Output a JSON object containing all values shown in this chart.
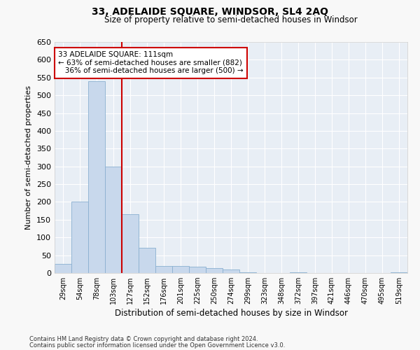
{
  "title": "33, ADELAIDE SQUARE, WINDSOR, SL4 2AQ",
  "subtitle": "Size of property relative to semi-detached houses in Windsor",
  "xlabel": "Distribution of semi-detached houses by size in Windsor",
  "ylabel": "Number of semi-detached properties",
  "bin_labels": [
    "29sqm",
    "54sqm",
    "78sqm",
    "103sqm",
    "127sqm",
    "152sqm",
    "176sqm",
    "201sqm",
    "225sqm",
    "250sqm",
    "274sqm",
    "299sqm",
    "323sqm",
    "348sqm",
    "372sqm",
    "397sqm",
    "421sqm",
    "446sqm",
    "470sqm",
    "495sqm",
    "519sqm"
  ],
  "bar_heights": [
    25,
    200,
    540,
    300,
    165,
    70,
    20,
    20,
    17,
    13,
    9,
    2,
    0,
    0,
    2,
    0,
    0,
    0,
    0,
    0,
    2
  ],
  "bar_color": "#c8d8ec",
  "bar_edge_color": "#8ab0d0",
  "background_color": "#e8eef5",
  "grid_color": "#ffffff",
  "ylim": [
    0,
    650
  ],
  "yticks": [
    0,
    50,
    100,
    150,
    200,
    250,
    300,
    350,
    400,
    450,
    500,
    550,
    600,
    650
  ],
  "red_line_bin_index": 3,
  "red_line_color": "#cc0000",
  "annotation_text": "33 ADELAIDE SQUARE: 111sqm\n← 63% of semi-detached houses are smaller (882)\n   36% of semi-detached houses are larger (500) →",
  "annotation_box_color": "#cc0000",
  "footnote1": "Contains HM Land Registry data © Crown copyright and database right 2024.",
  "footnote2": "Contains public sector information licensed under the Open Government Licence v3.0.",
  "fig_bg": "#f8f8f8"
}
